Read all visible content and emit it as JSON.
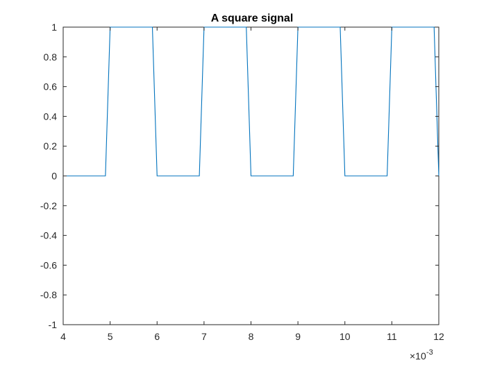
{
  "chart_data": {
    "type": "line",
    "title": "A square signal",
    "xlabel": "",
    "ylabel": "",
    "xlim": [
      0.004,
      0.012
    ],
    "ylim": [
      -1,
      1
    ],
    "x_scale_label": "×10",
    "x_scale_exponent": "-3",
    "xticks": [
      4,
      5,
      6,
      7,
      8,
      9,
      10,
      11,
      12
    ],
    "xtick_labels": [
      "4",
      "5",
      "6",
      "7",
      "8",
      "9",
      "10",
      "11",
      "12"
    ],
    "yticks": [
      -1,
      -0.8,
      -0.6,
      -0.4,
      -0.2,
      0,
      0.2,
      0.4,
      0.6,
      0.8,
      1
    ],
    "ytick_labels": [
      "-1",
      "-0.8",
      "-0.6",
      "-0.4",
      "-0.2",
      "0",
      "0.2",
      "0.4",
      "0.6",
      "0.8",
      "1"
    ],
    "grid": false,
    "series": [
      {
        "color": "#0072bd",
        "x": [
          0.004,
          0.0049,
          0.005,
          0.0059,
          0.006,
          0.0069,
          0.007,
          0.0079,
          0.008,
          0.0089,
          0.009,
          0.0099,
          0.01,
          0.0109,
          0.011,
          0.0119,
          0.012
        ],
        "y": [
          0,
          0,
          1,
          1,
          0,
          0,
          1,
          1,
          0,
          0,
          1,
          1,
          0,
          0,
          1,
          1,
          0
        ]
      }
    ]
  }
}
